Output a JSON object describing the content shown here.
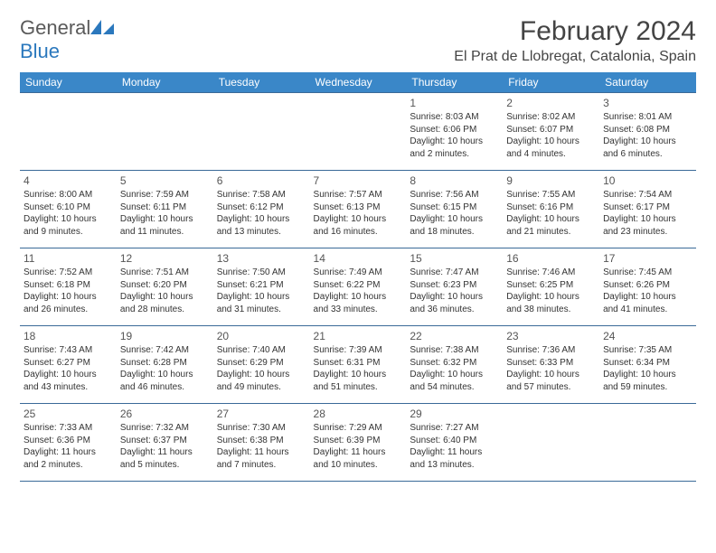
{
  "logo": {
    "word1": "General",
    "word2": "Blue"
  },
  "title": "February 2024",
  "location": "El Prat de Llobregat, Catalonia, Spain",
  "colors": {
    "header_bg": "#3a87c8",
    "header_text": "#ffffff",
    "rule": "#3a6a98",
    "logo_blue": "#2b78bd"
  },
  "weekdays": [
    "Sunday",
    "Monday",
    "Tuesday",
    "Wednesday",
    "Thursday",
    "Friday",
    "Saturday"
  ],
  "weeks": [
    [
      null,
      null,
      null,
      null,
      {
        "n": "1",
        "sr": "Sunrise: 8:03 AM",
        "ss": "Sunset: 6:06 PM",
        "d1": "Daylight: 10 hours",
        "d2": "and 2 minutes."
      },
      {
        "n": "2",
        "sr": "Sunrise: 8:02 AM",
        "ss": "Sunset: 6:07 PM",
        "d1": "Daylight: 10 hours",
        "d2": "and 4 minutes."
      },
      {
        "n": "3",
        "sr": "Sunrise: 8:01 AM",
        "ss": "Sunset: 6:08 PM",
        "d1": "Daylight: 10 hours",
        "d2": "and 6 minutes."
      }
    ],
    [
      {
        "n": "4",
        "sr": "Sunrise: 8:00 AM",
        "ss": "Sunset: 6:10 PM",
        "d1": "Daylight: 10 hours",
        "d2": "and 9 minutes."
      },
      {
        "n": "5",
        "sr": "Sunrise: 7:59 AM",
        "ss": "Sunset: 6:11 PM",
        "d1": "Daylight: 10 hours",
        "d2": "and 11 minutes."
      },
      {
        "n": "6",
        "sr": "Sunrise: 7:58 AM",
        "ss": "Sunset: 6:12 PM",
        "d1": "Daylight: 10 hours",
        "d2": "and 13 minutes."
      },
      {
        "n": "7",
        "sr": "Sunrise: 7:57 AM",
        "ss": "Sunset: 6:13 PM",
        "d1": "Daylight: 10 hours",
        "d2": "and 16 minutes."
      },
      {
        "n": "8",
        "sr": "Sunrise: 7:56 AM",
        "ss": "Sunset: 6:15 PM",
        "d1": "Daylight: 10 hours",
        "d2": "and 18 minutes."
      },
      {
        "n": "9",
        "sr": "Sunrise: 7:55 AM",
        "ss": "Sunset: 6:16 PM",
        "d1": "Daylight: 10 hours",
        "d2": "and 21 minutes."
      },
      {
        "n": "10",
        "sr": "Sunrise: 7:54 AM",
        "ss": "Sunset: 6:17 PM",
        "d1": "Daylight: 10 hours",
        "d2": "and 23 minutes."
      }
    ],
    [
      {
        "n": "11",
        "sr": "Sunrise: 7:52 AM",
        "ss": "Sunset: 6:18 PM",
        "d1": "Daylight: 10 hours",
        "d2": "and 26 minutes."
      },
      {
        "n": "12",
        "sr": "Sunrise: 7:51 AM",
        "ss": "Sunset: 6:20 PM",
        "d1": "Daylight: 10 hours",
        "d2": "and 28 minutes."
      },
      {
        "n": "13",
        "sr": "Sunrise: 7:50 AM",
        "ss": "Sunset: 6:21 PM",
        "d1": "Daylight: 10 hours",
        "d2": "and 31 minutes."
      },
      {
        "n": "14",
        "sr": "Sunrise: 7:49 AM",
        "ss": "Sunset: 6:22 PM",
        "d1": "Daylight: 10 hours",
        "d2": "and 33 minutes."
      },
      {
        "n": "15",
        "sr": "Sunrise: 7:47 AM",
        "ss": "Sunset: 6:23 PM",
        "d1": "Daylight: 10 hours",
        "d2": "and 36 minutes."
      },
      {
        "n": "16",
        "sr": "Sunrise: 7:46 AM",
        "ss": "Sunset: 6:25 PM",
        "d1": "Daylight: 10 hours",
        "d2": "and 38 minutes."
      },
      {
        "n": "17",
        "sr": "Sunrise: 7:45 AM",
        "ss": "Sunset: 6:26 PM",
        "d1": "Daylight: 10 hours",
        "d2": "and 41 minutes."
      }
    ],
    [
      {
        "n": "18",
        "sr": "Sunrise: 7:43 AM",
        "ss": "Sunset: 6:27 PM",
        "d1": "Daylight: 10 hours",
        "d2": "and 43 minutes."
      },
      {
        "n": "19",
        "sr": "Sunrise: 7:42 AM",
        "ss": "Sunset: 6:28 PM",
        "d1": "Daylight: 10 hours",
        "d2": "and 46 minutes."
      },
      {
        "n": "20",
        "sr": "Sunrise: 7:40 AM",
        "ss": "Sunset: 6:29 PM",
        "d1": "Daylight: 10 hours",
        "d2": "and 49 minutes."
      },
      {
        "n": "21",
        "sr": "Sunrise: 7:39 AM",
        "ss": "Sunset: 6:31 PM",
        "d1": "Daylight: 10 hours",
        "d2": "and 51 minutes."
      },
      {
        "n": "22",
        "sr": "Sunrise: 7:38 AM",
        "ss": "Sunset: 6:32 PM",
        "d1": "Daylight: 10 hours",
        "d2": "and 54 minutes."
      },
      {
        "n": "23",
        "sr": "Sunrise: 7:36 AM",
        "ss": "Sunset: 6:33 PM",
        "d1": "Daylight: 10 hours",
        "d2": "and 57 minutes."
      },
      {
        "n": "24",
        "sr": "Sunrise: 7:35 AM",
        "ss": "Sunset: 6:34 PM",
        "d1": "Daylight: 10 hours",
        "d2": "and 59 minutes."
      }
    ],
    [
      {
        "n": "25",
        "sr": "Sunrise: 7:33 AM",
        "ss": "Sunset: 6:36 PM",
        "d1": "Daylight: 11 hours",
        "d2": "and 2 minutes."
      },
      {
        "n": "26",
        "sr": "Sunrise: 7:32 AM",
        "ss": "Sunset: 6:37 PM",
        "d1": "Daylight: 11 hours",
        "d2": "and 5 minutes."
      },
      {
        "n": "27",
        "sr": "Sunrise: 7:30 AM",
        "ss": "Sunset: 6:38 PM",
        "d1": "Daylight: 11 hours",
        "d2": "and 7 minutes."
      },
      {
        "n": "28",
        "sr": "Sunrise: 7:29 AM",
        "ss": "Sunset: 6:39 PM",
        "d1": "Daylight: 11 hours",
        "d2": "and 10 minutes."
      },
      {
        "n": "29",
        "sr": "Sunrise: 7:27 AM",
        "ss": "Sunset: 6:40 PM",
        "d1": "Daylight: 11 hours",
        "d2": "and 13 minutes."
      },
      null,
      null
    ]
  ]
}
